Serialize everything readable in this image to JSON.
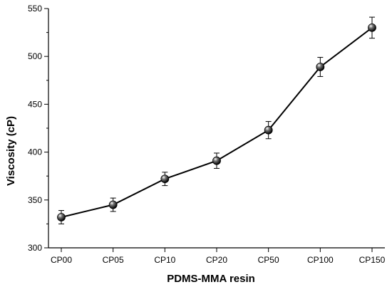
{
  "chart_data": {
    "type": "line",
    "title": "",
    "xlabel": "PDMS-MMA resin",
    "ylabel": "Viscosity (cP)",
    "categories": [
      "CP00",
      "CP05",
      "CP10",
      "CP20",
      "CP50",
      "CP100",
      "CP150"
    ],
    "series": [
      {
        "values": [
          332,
          345,
          372,
          391,
          423,
          489,
          530
        ],
        "error": [
          7,
          7,
          7,
          8,
          9,
          10,
          11
        ]
      }
    ],
    "ylim": [
      300,
      550
    ],
    "yticks": [
      300,
      350,
      400,
      450,
      500,
      550
    ],
    "grid": false,
    "legend": "none",
    "colors": {
      "line": "#000000",
      "marker": "#1a1a1a"
    }
  }
}
